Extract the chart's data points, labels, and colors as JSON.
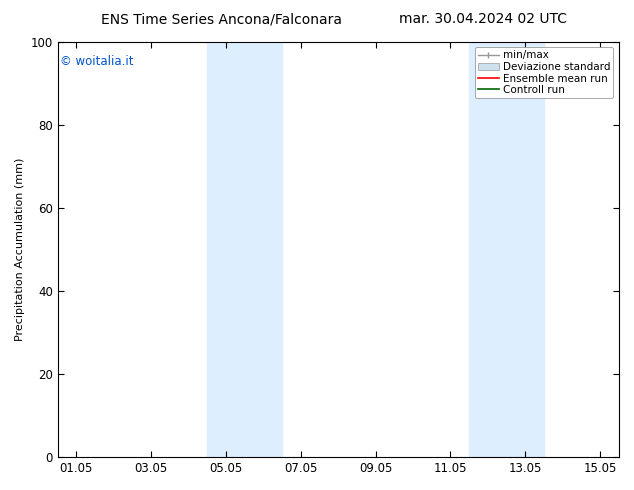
{
  "title_left": "ENS Time Series Ancona/Falconara",
  "title_right": "mar. 30.04.2024 02 UTC",
  "ylabel": "Precipitation Accumulation (mm)",
  "xlabel": "",
  "ylim": [
    0,
    100
  ],
  "yticks": [
    0,
    20,
    40,
    60,
    80,
    100
  ],
  "xtick_labels": [
    "01.05",
    "03.05",
    "05.05",
    "07.05",
    "09.05",
    "11.05",
    "13.05",
    "15.05"
  ],
  "xtick_positions": [
    0,
    2,
    4,
    6,
    8,
    10,
    12,
    14
  ],
  "xlim": [
    -0.5,
    14.5
  ],
  "shaded_bands": [
    {
      "x_start": 3.5,
      "x_end": 5.5,
      "color": "#ddeeff"
    },
    {
      "x_start": 10.5,
      "x_end": 12.5,
      "color": "#ddeeff"
    }
  ],
  "copyright_text": "© woitalia.it",
  "copyright_color": "#0055cc",
  "bg_color": "#ffffff",
  "legend_items": [
    {
      "label": "min/max",
      "color": "#999999",
      "lw": 1.0,
      "style": "errorbar"
    },
    {
      "label": "Deviazione standard",
      "color": "#cce0f0",
      "lw": 6,
      "style": "box"
    },
    {
      "label": "Ensemble mean run",
      "color": "#ff0000",
      "lw": 1.2,
      "style": "line"
    },
    {
      "label": "Controll run",
      "color": "#006600",
      "lw": 1.2,
      "style": "line"
    }
  ],
  "title_fontsize": 10,
  "ylabel_fontsize": 8,
  "legend_fontsize": 7.5,
  "tick_fontsize": 8.5,
  "copyright_fontsize": 8.5
}
